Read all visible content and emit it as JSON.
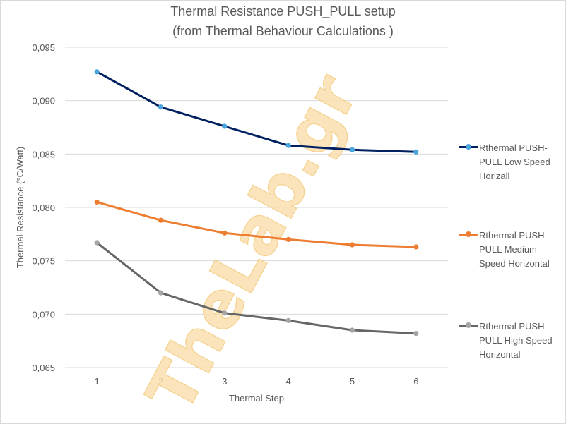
{
  "chart_data": {
    "type": "line",
    "title": "Thermal Resistance PUSH_PULL setup",
    "subtitle": "(from Thermal Behaviour Calculations )",
    "xlabel": "Thermal Step",
    "ylabel": "Thermal Resistance (°C/Watt)",
    "categories": [
      "1",
      "2",
      "3",
      "4",
      "5",
      "6"
    ],
    "ylim": [
      0.065,
      0.095
    ],
    "yticks": [
      0.065,
      0.07,
      0.075,
      0.08,
      0.085,
      0.09,
      0.095
    ],
    "ytick_labels": [
      "0,065",
      "0,070",
      "0,075",
      "0,080",
      "0,085",
      "0,090",
      "0,095"
    ],
    "grid": true,
    "legend_position": "right",
    "series": [
      {
        "name": "Rthermal PUSH-PULL Low Speed Horizall",
        "values": [
          0.0927,
          0.0894,
          0.0876,
          0.0858,
          0.0854,
          0.0852
        ],
        "line_color": "#002060",
        "marker_color": "#4ba5dd"
      },
      {
        "name": "Rthermal PUSH-PULL Medium Speed Horizontal",
        "values": [
          0.0805,
          0.0788,
          0.0776,
          0.077,
          0.0765,
          0.0763
        ],
        "line_color": "#ed7d31",
        "marker_color": "#ed7d31"
      },
      {
        "name": "Rthermal PUSH-PULL High Speed Horizontal",
        "values": [
          0.0767,
          0.072,
          0.0701,
          0.0694,
          0.0685,
          0.0682
        ],
        "line_color": "#666666",
        "marker_color": "#a5a5a5"
      }
    ]
  },
  "watermark": "TheLab.gr",
  "colors": {
    "gridline": "#d9d9d9",
    "text": "#595959",
    "watermark": "#fbe0b0"
  }
}
